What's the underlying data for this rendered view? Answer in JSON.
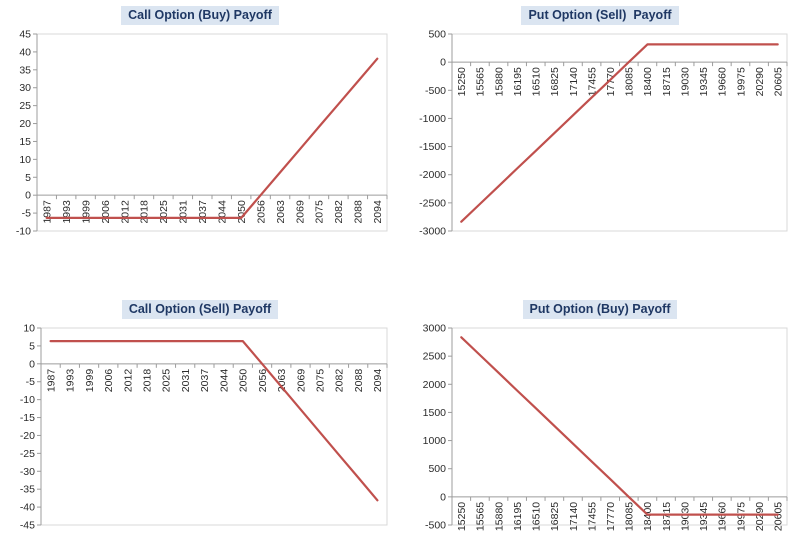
{
  "colors": {
    "series_line": "#C0504D",
    "title_text": "#1F3864",
    "title_bg": "#DBE5F1",
    "axis_line": "#9C9C9C",
    "plot_border": "#D9D9D9",
    "tick_text": "#2B2B2B"
  },
  "chart_data": [
    {
      "type": "line",
      "title": "Call Option (Buy) Payoff",
      "categories": [
        "1987",
        "1993",
        "1999",
        "2006",
        "2012",
        "2018",
        "2025",
        "2031",
        "2037",
        "2044",
        "2050",
        "2056",
        "2063",
        "2069",
        "2075",
        "2082",
        "2088",
        "2094"
      ],
      "values": [
        -6.35,
        -6.35,
        -6.35,
        -6.35,
        -6.35,
        -6.35,
        -6.35,
        -6.35,
        -6.35,
        -6.35,
        -6.35,
        0,
        6.35,
        12.7,
        19.05,
        25.4,
        31.75,
        38.1
      ],
      "ylim": [
        -10,
        45
      ],
      "ystep": 5,
      "xlabel": "",
      "ylabel": "",
      "grid": "off",
      "legend": "none"
    },
    {
      "type": "line",
      "title": "Put Option (Sell)  Payoff",
      "categories": [
        "15250",
        "15565",
        "15880",
        "16195",
        "16510",
        "16825",
        "17140",
        "17455",
        "17770",
        "18085",
        "18400",
        "18715",
        "19030",
        "19345",
        "19660",
        "19975",
        "20290",
        "20605"
      ],
      "values": [
        -2835,
        -2520,
        -2205,
        -1890,
        -1575,
        -1260,
        -945,
        -630,
        -315,
        0,
        315,
        315,
        315,
        315,
        315,
        315,
        315,
        315
      ],
      "ylim": [
        -3000,
        500
      ],
      "ystep": 500,
      "xlabel": "",
      "ylabel": "",
      "grid": "off",
      "legend": "none"
    },
    {
      "type": "line",
      "title": "Call Option (Sell) Payoff",
      "categories": [
        "1987",
        "1993",
        "1999",
        "2006",
        "2012",
        "2018",
        "2025",
        "2031",
        "2037",
        "2044",
        "2050",
        "2056",
        "2063",
        "2069",
        "2075",
        "2082",
        "2088",
        "2094"
      ],
      "values": [
        6.35,
        6.35,
        6.35,
        6.35,
        6.35,
        6.35,
        6.35,
        6.35,
        6.35,
        6.35,
        6.35,
        0,
        -6.35,
        -12.7,
        -19.05,
        -25.4,
        -31.75,
        -38.1
      ],
      "ylim": [
        -45,
        10
      ],
      "ystep": 5,
      "xlabel": "",
      "ylabel": "",
      "grid": "off",
      "legend": "none"
    },
    {
      "type": "line",
      "title": "Put Option (Buy) Payoff",
      "categories": [
        "15250",
        "15565",
        "15880",
        "16195",
        "16510",
        "16825",
        "17140",
        "17455",
        "17770",
        "18085",
        "18400",
        "18715",
        "19030",
        "19345",
        "19660",
        "19975",
        "20290",
        "20605"
      ],
      "values": [
        2835,
        2520,
        2205,
        1890,
        1575,
        1260,
        945,
        630,
        315,
        0,
        -315,
        -315,
        -315,
        -315,
        -315,
        -315,
        -315,
        -315
      ],
      "ylim": [
        -500,
        3000
      ],
      "ystep": 500,
      "xlabel": "",
      "ylabel": "",
      "grid": "off",
      "legend": "none"
    }
  ]
}
